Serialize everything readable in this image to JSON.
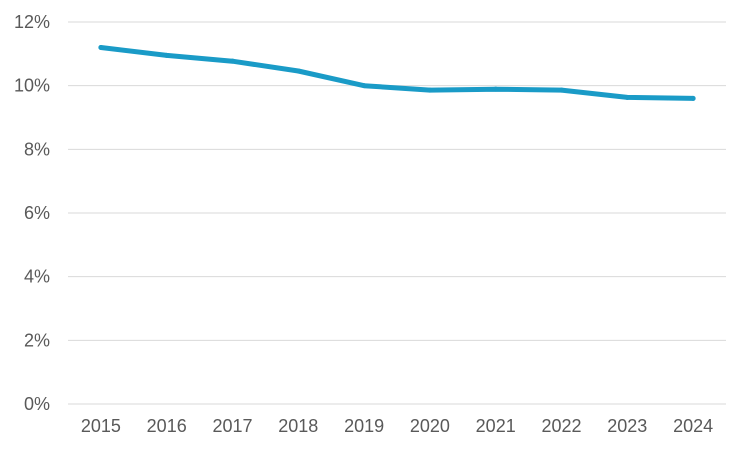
{
  "chart_data": {
    "type": "line",
    "categories": [
      "2015",
      "2016",
      "2017",
      "2018",
      "2019",
      "2020",
      "2021",
      "2022",
      "2023",
      "2024"
    ],
    "series": [
      {
        "values": [
          11.2,
          10.95,
          10.77,
          10.46,
          10.0,
          9.86,
          9.89,
          9.86,
          9.63,
          9.6
        ]
      }
    ],
    "y_ticks": [
      "0%",
      "2%",
      "4%",
      "6%",
      "8%",
      "10%",
      "12%"
    ],
    "ylim": [
      0,
      12
    ],
    "y_unit": "%",
    "grid": true,
    "legend": "none",
    "colors": {
      "series": "#1a9bc7",
      "grid": "#d9d9d9",
      "text": "#595959"
    }
  }
}
